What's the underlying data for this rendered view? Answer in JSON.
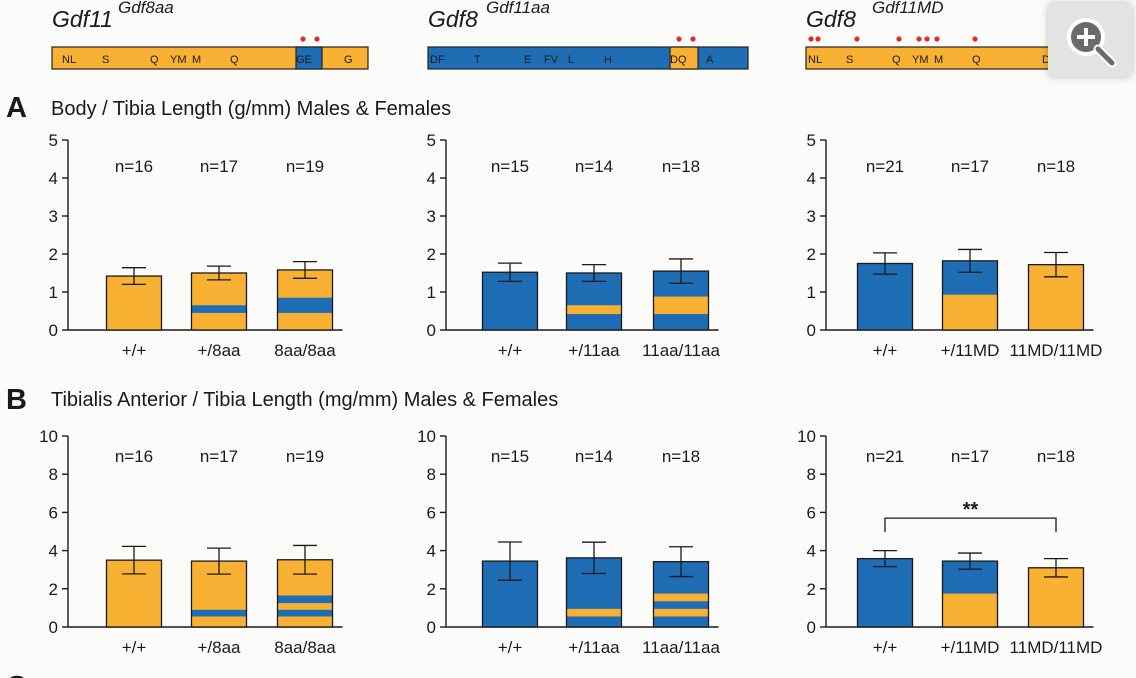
{
  "colors": {
    "orange": "#f8b133",
    "blue": "#1f6db5",
    "star": "#e02b2b",
    "ink": "#1a1a1a"
  },
  "headers": [
    {
      "gene": "Gdf11",
      "allele": "Gdf8aa",
      "bar_base": "orange",
      "residues": [
        "NL",
        "S",
        "Q",
        "YM",
        "M",
        "Q",
        "GE",
        "G"
      ],
      "highlight_index": 6,
      "highlight_color": "blue",
      "stars": 2
    },
    {
      "gene": "Gdf8",
      "allele": "Gdf11aa",
      "bar_base": "blue",
      "residues": [
        "DF",
        "T",
        "E",
        "FV",
        "L",
        "H",
        "DQ",
        "A"
      ],
      "highlight_index": 6,
      "highlight_color": "orange",
      "stars": 2
    },
    {
      "gene": "Gdf8",
      "allele": "Gdf11MD",
      "bar_base": "orange",
      "residues": [
        "NL",
        "S",
        "Q",
        "YM",
        "M",
        "Q",
        "D"
      ],
      "highlight_index": -1,
      "highlight_color": "",
      "stars": 9
    }
  ],
  "sections": [
    {
      "letter": "A",
      "title": "Body / Tibia Length (g/mm) Males & Females"
    },
    {
      "letter": "B",
      "title": "Tibialis Anterior / Tibia Length (mg/mm) Males & Females"
    },
    {
      "letter": "C"
    }
  ],
  "chart_data": [
    {
      "type": "bar",
      "row": "A",
      "col": 0,
      "ylim": [
        0,
        5
      ],
      "yticks": [
        0,
        1,
        2,
        3,
        4,
        5
      ],
      "categories": [
        "+/+",
        "+/8aa",
        "8aa/8aa"
      ],
      "n_labels": [
        "n=16",
        "n=17",
        "n=19"
      ],
      "values": [
        1.42,
        1.5,
        1.58
      ],
      "errors": [
        0.22,
        0.18,
        0.22
      ],
      "base_color": "orange",
      "stripes": [
        [],
        [
          [
            0.45,
            0.65
          ]
        ],
        [
          [
            0.45,
            0.85
          ]
        ]
      ],
      "stripe_color": "blue",
      "significance": null
    },
    {
      "type": "bar",
      "row": "A",
      "col": 1,
      "ylim": [
        0,
        5
      ],
      "yticks": [
        0,
        1,
        2,
        3,
        4,
        5
      ],
      "categories": [
        "+/+",
        "+/11aa",
        "11aa/11aa"
      ],
      "n_labels": [
        "n=15",
        "n=14",
        "n=18"
      ],
      "values": [
        1.52,
        1.5,
        1.55
      ],
      "errors": [
        0.24,
        0.22,
        0.32
      ],
      "base_color": "blue",
      "stripes": [
        [],
        [
          [
            0.42,
            0.65
          ]
        ],
        [
          [
            0.42,
            0.88
          ]
        ]
      ],
      "stripe_color": "orange",
      "significance": null
    },
    {
      "type": "bar",
      "row": "A",
      "col": 2,
      "ylim": [
        0,
        5
      ],
      "yticks": [
        0,
        1,
        2,
        3,
        4,
        5
      ],
      "categories": [
        "+/+",
        "+/11MD",
        "11MD/11MD"
      ],
      "n_labels": [
        "n=21",
        "n=17",
        "n=18"
      ],
      "values": [
        1.75,
        1.82,
        1.72
      ],
      "errors": [
        0.28,
        0.3,
        0.32
      ],
      "base_color": "blue",
      "stripes": [
        [],
        [
          [
            0,
            0.93
          ]
        ],
        [
          [
            0,
            1.72
          ]
        ]
      ],
      "stripe_color": "orange",
      "significance": null
    },
    {
      "type": "bar",
      "row": "B",
      "col": 0,
      "ylim": [
        0,
        10
      ],
      "yticks": [
        0,
        2,
        4,
        6,
        8,
        10
      ],
      "categories": [
        "+/+",
        "+/8aa",
        "8aa/8aa"
      ],
      "n_labels": [
        "n=16",
        "n=17",
        "n=19"
      ],
      "values": [
        3.5,
        3.45,
        3.52
      ],
      "errors": [
        0.72,
        0.68,
        0.75
      ],
      "base_color": "orange",
      "stripes": [
        [],
        [
          [
            0.55,
            0.9
          ]
        ],
        [
          [
            0.55,
            0.9
          ],
          [
            1.25,
            1.65
          ]
        ]
      ],
      "stripe_color": "blue",
      "significance": null
    },
    {
      "type": "bar",
      "row": "B",
      "col": 1,
      "ylim": [
        0,
        10
      ],
      "yticks": [
        0,
        2,
        4,
        6,
        8,
        10
      ],
      "categories": [
        "+/+",
        "+/11aa",
        "11aa/11aa"
      ],
      "n_labels": [
        "n=15",
        "n=14",
        "n=18"
      ],
      "values": [
        3.45,
        3.62,
        3.42
      ],
      "errors": [
        1.0,
        0.82,
        0.78
      ],
      "base_color": "blue",
      "stripes": [
        [],
        [
          [
            0.55,
            0.95
          ]
        ],
        [
          [
            0.55,
            0.95
          ],
          [
            1.35,
            1.75
          ]
        ]
      ],
      "stripe_color": "orange",
      "significance": null
    },
    {
      "type": "bar",
      "row": "B",
      "col": 2,
      "ylim": [
        0,
        10
      ],
      "yticks": [
        0,
        2,
        4,
        6,
        8,
        10
      ],
      "categories": [
        "+/+",
        "+/11MD",
        "11MD/11MD"
      ],
      "n_labels": [
        "n=21",
        "n=17",
        "n=18"
      ],
      "values": [
        3.58,
        3.45,
        3.1
      ],
      "errors": [
        0.42,
        0.42,
        0.48
      ],
      "base_color": "blue",
      "stripes": [
        [],
        [
          [
            0,
            1.75
          ]
        ],
        [
          [
            0,
            3.1
          ]
        ]
      ],
      "stripe_color": "orange",
      "significance": {
        "from": 0,
        "to": 2,
        "label": "**",
        "y": 5.7
      }
    }
  ]
}
